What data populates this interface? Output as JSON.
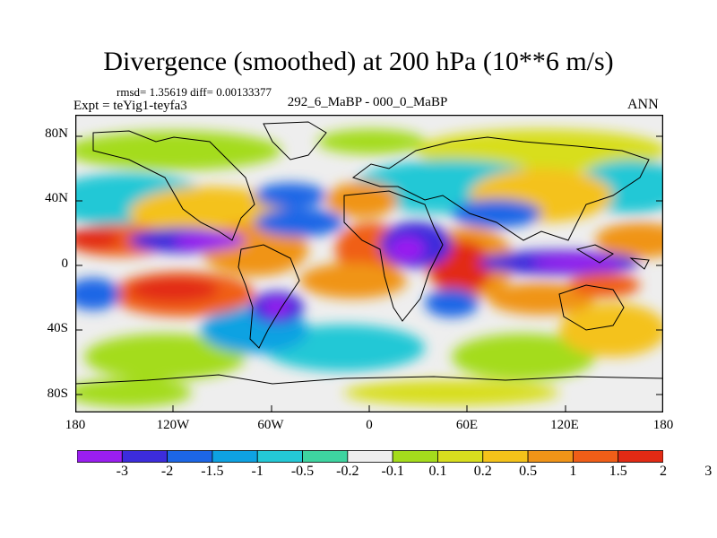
{
  "title": "Divergence (smoothed) at 200 hPa (10**6 m/s)",
  "stats": "rmsd= 1.35619 diff= 0.00133377",
  "expt": "Expt = teYig1-teyfa3",
  "subtitle": "292_6_MaBP - 000_0_MaBP",
  "season": "ANN",
  "map": {
    "y_axis_labels": [
      "80N",
      "40N",
      "0",
      "40S",
      "80S"
    ],
    "x_axis_labels": [
      "180",
      "120W",
      "60W",
      "0",
      "60E",
      "120E",
      "180"
    ]
  },
  "colorbar": {
    "labels": [
      "-3",
      "-2",
      "-1.5",
      "-1",
      "-0.5",
      "-0.2",
      "-0.1",
      "0.1",
      "0.2",
      "0.5",
      "1",
      "1.5",
      "2",
      "3"
    ],
    "colors": [
      "#9a1ef0",
      "#3c2cdc",
      "#1c66e6",
      "#0ea2e2",
      "#24c8d6",
      "#3ed4a0",
      "#eeeeee",
      "#a4dc1c",
      "#d8de1e",
      "#f4c21a",
      "#f09418",
      "#f05e18",
      "#e22a14"
    ]
  },
  "palette": {
    "neutral": "#eeeeee",
    "pos_weak": "#a4dc1c",
    "pos_med": "#f4c21a",
    "pos_strong": "#e22a14",
    "neg_weak": "#24c8d6",
    "neg_med": "#1c66e6",
    "neg_strong": "#9a1ef0"
  }
}
